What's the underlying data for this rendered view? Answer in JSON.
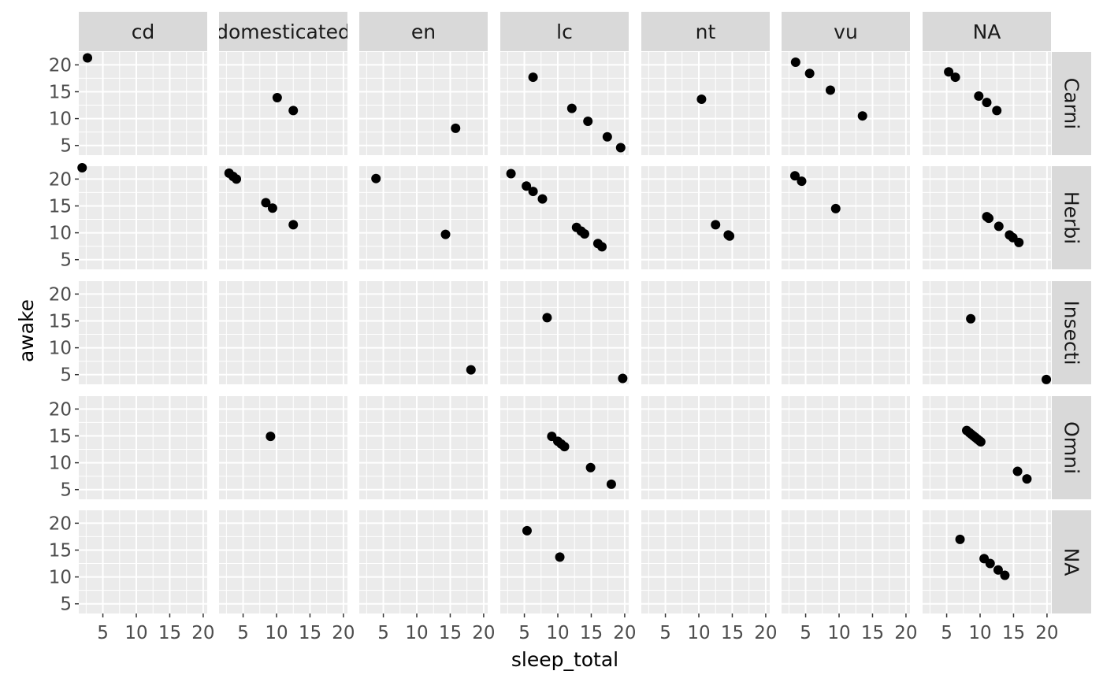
{
  "chart_data": {
    "type": "scatter",
    "facet_columns": [
      "cd",
      "domesticated",
      "en",
      "lc",
      "nt",
      "vu",
      "NA"
    ],
    "facet_rows": [
      "Carni",
      "Herbi",
      "Insecti",
      "Omni",
      "NA"
    ],
    "xlabel": "sleep_total",
    "ylabel": "awake",
    "x_ticks": [
      5,
      10,
      15,
      20
    ],
    "y_ticks": [
      5,
      10,
      15,
      20
    ],
    "xlim": [
      1.4,
      20.6
    ],
    "ylim": [
      3.2,
      22.4
    ],
    "grid": true,
    "colors": {
      "panel_bg": "#EBEBEB",
      "strip_bg": "#D9D9D9",
      "grid": "#FFFFFF",
      "point": "#000000"
    },
    "facets": [
      {
        "row": "Carni",
        "col": "cd",
        "points": [
          [
            2.7,
            21.3
          ]
        ]
      },
      {
        "row": "Carni",
        "col": "domesticated",
        "points": [
          [
            10.1,
            13.9
          ],
          [
            12.5,
            11.5
          ]
        ]
      },
      {
        "row": "Carni",
        "col": "en",
        "points": [
          [
            15.8,
            8.2
          ]
        ]
      },
      {
        "row": "Carni",
        "col": "lc",
        "points": [
          [
            6.3,
            17.7
          ],
          [
            12.1,
            11.9
          ],
          [
            14.5,
            9.5
          ],
          [
            17.4,
            6.6
          ],
          [
            19.4,
            4.6
          ]
        ]
      },
      {
        "row": "Carni",
        "col": "nt",
        "points": [
          [
            10.4,
            13.6
          ]
        ]
      },
      {
        "row": "Carni",
        "col": "vu",
        "points": [
          [
            3.5,
            20.5
          ],
          [
            5.6,
            18.4
          ],
          [
            8.7,
            15.3
          ],
          [
            13.5,
            10.5
          ]
        ]
      },
      {
        "row": "Carni",
        "col": "NA",
        "points": [
          [
            5.3,
            18.7
          ],
          [
            6.3,
            17.7
          ],
          [
            9.8,
            14.2
          ],
          [
            11.0,
            13.0
          ],
          [
            12.5,
            11.5
          ]
        ]
      },
      {
        "row": "Herbi",
        "col": "cd",
        "points": [
          [
            1.9,
            22.1
          ]
        ]
      },
      {
        "row": "Herbi",
        "col": "domesticated",
        "points": [
          [
            2.9,
            21.1
          ],
          [
            3.5,
            20.5
          ],
          [
            4.0,
            20.0
          ],
          [
            8.4,
            15.6
          ],
          [
            9.4,
            14.6
          ],
          [
            12.5,
            11.5
          ]
        ]
      },
      {
        "row": "Herbi",
        "col": "en",
        "points": [
          [
            3.9,
            20.1
          ],
          [
            14.3,
            9.7
          ]
        ]
      },
      {
        "row": "Herbi",
        "col": "lc",
        "points": [
          [
            3.0,
            21.0
          ],
          [
            5.3,
            18.7
          ],
          [
            6.3,
            17.7
          ],
          [
            7.7,
            16.3
          ],
          [
            12.8,
            11.0
          ],
          [
            13.5,
            10.3
          ],
          [
            14.0,
            9.8
          ],
          [
            16.0,
            8.0
          ],
          [
            16.6,
            7.4
          ]
        ]
      },
      {
        "row": "Herbi",
        "col": "nt",
        "points": [
          [
            12.5,
            11.5
          ],
          [
            14.4,
            9.6
          ],
          [
            14.6,
            9.4
          ]
        ]
      },
      {
        "row": "Herbi",
        "col": "vu",
        "points": [
          [
            3.4,
            20.6
          ],
          [
            4.4,
            19.6
          ],
          [
            9.5,
            14.5
          ]
        ]
      },
      {
        "row": "Herbi",
        "col": "NA",
        "points": [
          [
            11.0,
            13.0
          ],
          [
            11.3,
            12.7
          ],
          [
            12.8,
            11.2
          ],
          [
            14.4,
            9.6
          ],
          [
            14.9,
            9.1
          ],
          [
            15.8,
            8.2
          ]
        ]
      },
      {
        "row": "Insecti",
        "col": "en",
        "points": [
          [
            18.1,
            5.9
          ]
        ]
      },
      {
        "row": "Insecti",
        "col": "lc",
        "points": [
          [
            8.4,
            15.6
          ],
          [
            19.7,
            4.3
          ]
        ]
      },
      {
        "row": "Insecti",
        "col": "NA",
        "points": [
          [
            8.6,
            15.4
          ],
          [
            19.9,
            4.1
          ]
        ]
      },
      {
        "row": "Omni",
        "col": "domesticated",
        "points": [
          [
            9.1,
            14.9
          ]
        ]
      },
      {
        "row": "Omni",
        "col": "lc",
        "points": [
          [
            9.1,
            14.9
          ],
          [
            10.0,
            14.0
          ],
          [
            10.5,
            13.5
          ],
          [
            11.0,
            13.0
          ],
          [
            14.9,
            9.1
          ],
          [
            18.0,
            6.0
          ]
        ]
      },
      {
        "row": "Omni",
        "col": "NA",
        "points": [
          [
            8.0,
            16.0
          ],
          [
            8.4,
            15.6
          ],
          [
            8.7,
            15.3
          ],
          [
            9.0,
            15.0
          ],
          [
            9.3,
            14.7
          ],
          [
            9.6,
            14.4
          ],
          [
            9.9,
            14.1
          ],
          [
            10.1,
            13.9
          ],
          [
            15.6,
            8.4
          ],
          [
            17.0,
            7.0
          ]
        ]
      },
      {
        "row": "NA",
        "col": "lc",
        "points": [
          [
            5.4,
            18.6
          ],
          [
            10.3,
            13.7
          ]
        ]
      },
      {
        "row": "NA",
        "col": "NA",
        "points": [
          [
            7.0,
            17.0
          ],
          [
            10.6,
            13.4
          ],
          [
            11.5,
            12.5
          ],
          [
            12.7,
            11.3
          ],
          [
            13.7,
            10.3
          ]
        ]
      }
    ]
  }
}
